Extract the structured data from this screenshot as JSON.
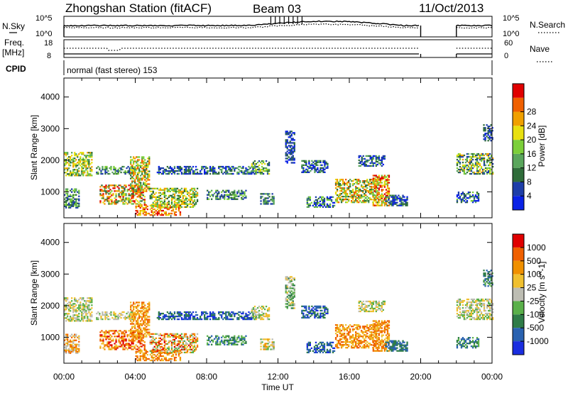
{
  "header": {
    "station": "Zhongshan Station (fitACF)",
    "beam": "Beam 03",
    "date": "11/Oct/2013"
  },
  "panels": {
    "nsky_label": "N.Sky",
    "nsky_ticks": [
      "10^5",
      "10^0"
    ],
    "nsearch_label": "N.Search",
    "nsearch_ticks": [
      "10^5",
      "10^0"
    ],
    "freq_label": "Freq.",
    "freq_unit": "[MHz]",
    "freq_ticks": [
      "18",
      "8"
    ],
    "nave_label": "Nave",
    "nave_ticks": [
      "60",
      "0"
    ],
    "cpid_label": "CPID",
    "cpid_text": "normal (fast stereo) 153"
  },
  "colors": {
    "power_scale": [
      "#0a22e6",
      "#1e3ea8",
      "#2f6c3a",
      "#5aa65c",
      "#7ccf3a",
      "#e8e010",
      "#f0a000",
      "#f06000",
      "#e00000"
    ],
    "velocity_scale": [
      "#e00000",
      "#f06000",
      "#f09000",
      "#f0c030",
      "#bdbdb3",
      "#5ab04a",
      "#2f7c48",
      "#2a62b0",
      "#1a2ee0"
    ]
  },
  "chart_data": [
    {
      "type": "heatmap",
      "title": "Power",
      "xlabel": "",
      "ylabel": "Slant Range [km]",
      "xlim": [
        0,
        24
      ],
      "ylim": [
        180,
        4600
      ],
      "x_ticks": [
        "00:00",
        "04:00",
        "08:00",
        "12:00",
        "16:00",
        "20:00",
        "00:00"
      ],
      "y_ticks": [
        1000,
        2000,
        3000,
        4000
      ],
      "colorbar": {
        "label": "Power [dB]",
        "ticks": [
          4,
          8,
          12,
          16,
          20,
          24,
          28
        ]
      }
    },
    {
      "type": "heatmap",
      "title": "Velocity",
      "xlabel": "Time UT",
      "ylabel": "Slant Range [km]",
      "xlim": [
        0,
        24
      ],
      "ylim": [
        180,
        4600
      ],
      "x_ticks": [
        "00:00",
        "04:00",
        "08:00",
        "12:00",
        "16:00",
        "20:00",
        "00:00"
      ],
      "y_ticks": [
        1000,
        2000,
        3000,
        4000
      ],
      "colorbar": {
        "label": "Velocity [m s^-1]",
        "ticks": [
          1000,
          500,
          100,
          25,
          -25,
          -100,
          -500,
          -1000
        ]
      }
    }
  ]
}
